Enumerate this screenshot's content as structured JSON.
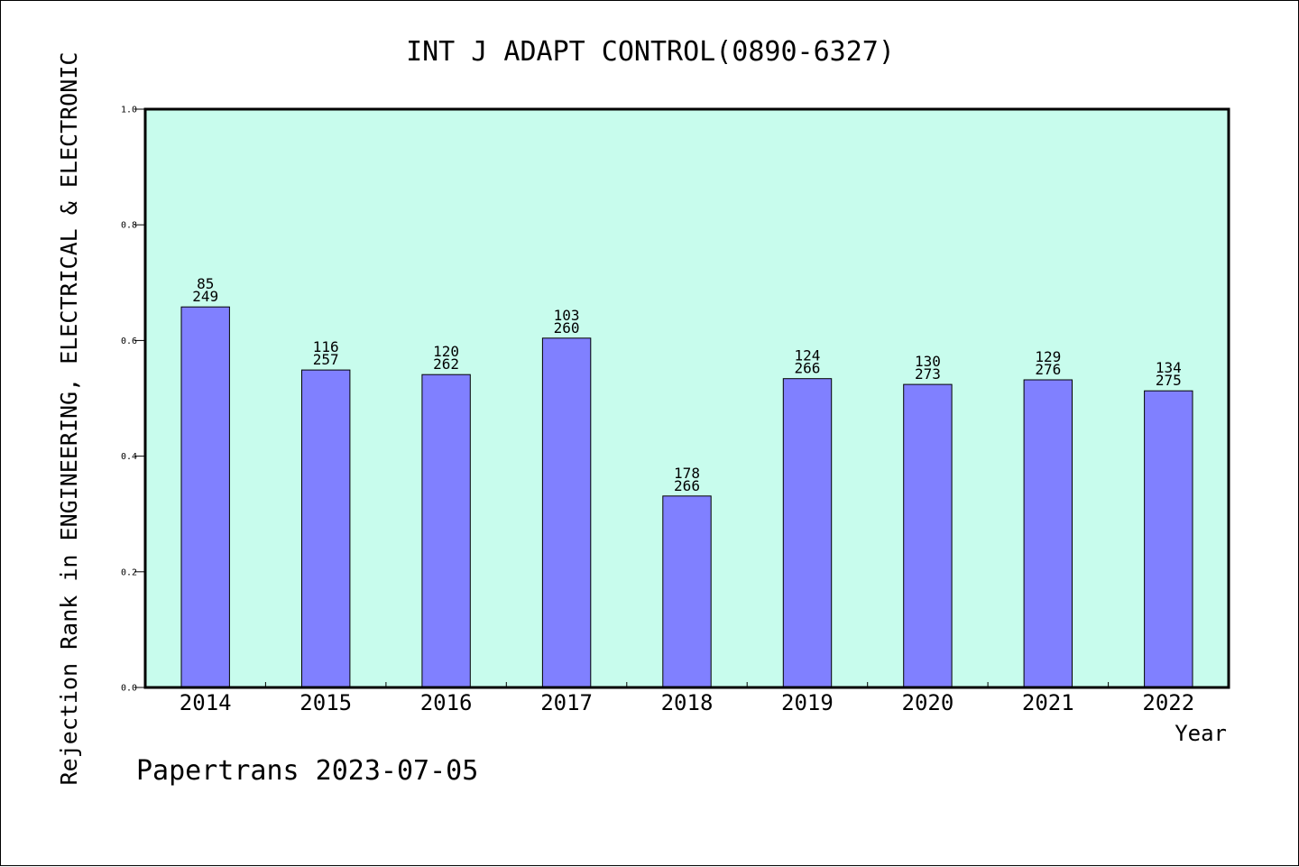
{
  "chart_data": {
    "type": "bar",
    "title": "INT J ADAPT CONTROL(0890-6327)",
    "xlabel": "Year",
    "ylabel": "Rejection Rank in ENGINEERING, ELECTRICAL & ELECTRONIC",
    "ylim": [
      0,
      1.0
    ],
    "yticks": [
      "0.0",
      "0.2",
      "0.4",
      "0.6",
      "0.8",
      "1.0"
    ],
    "categories": [
      "2014",
      "2015",
      "2016",
      "2017",
      "2018",
      "2019",
      "2020",
      "2021",
      "2022"
    ],
    "values": [
      0.658,
      0.549,
      0.541,
      0.604,
      0.331,
      0.534,
      0.524,
      0.532,
      0.513
    ],
    "rank": [
      "85",
      "116",
      "120",
      "103",
      "178",
      "124",
      "130",
      "129",
      "134"
    ],
    "total": [
      "249",
      "257",
      "262",
      "260",
      "266",
      "266",
      "273",
      "276",
      "275"
    ],
    "grid": false,
    "colors": {
      "plot_background": "#c8fced",
      "bar_fill": "#8080ff",
      "bar_stroke": "#000000",
      "axis": "#000000"
    }
  },
  "footer": {
    "credit": "Papertrans 2023-07-05"
  }
}
